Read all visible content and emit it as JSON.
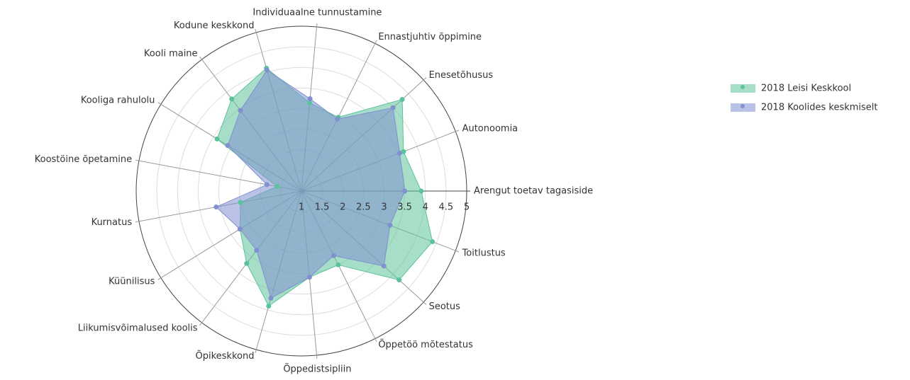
{
  "chart_data": {
    "type": "radar",
    "categories": [
      "Arengut toetav tagasiside",
      "Autonoomia",
      "Enesetõhusus",
      "Ennastjuhtiv õppimine",
      "Individuaalne tunnustamine",
      "Kodune keskkond",
      "Kooli maine",
      "Kooliga rahulolu",
      "Koostöine õpetamine",
      "Kurnatus",
      "Küünilisus",
      "Liikumisvõimalused koolis",
      "Õpikeskkond",
      "Õppedistsipliin",
      "Õppetöö mõtestatus",
      "Seotus",
      "Toitlustus"
    ],
    "series": [
      {
        "name": "2018 Leisi Keskkool",
        "color": "#5cc29b",
        "values": [
          3.9,
          3.65,
          4.3,
          3.0,
          3.15,
          4.1,
          3.8,
          3.4,
          1.6,
          2.5,
          2.75,
          3.2,
          3.9,
          3.1,
          3.0,
          4.2,
          4.4
        ]
      },
      {
        "name": "2018 Koolides keskmiselt",
        "color": "#8190d0",
        "values": [
          3.5,
          3.55,
          4.0,
          2.95,
          3.25,
          4.05,
          3.45,
          3.1,
          1.85,
          3.1,
          2.75,
          2.8,
          3.7,
          3.1,
          2.75,
          3.7,
          3.3
        ]
      }
    ],
    "rlim": [
      1,
      5
    ],
    "rticks": [
      1,
      1.5,
      2,
      2.5,
      3,
      3.5,
      4,
      4.5,
      5
    ]
  }
}
